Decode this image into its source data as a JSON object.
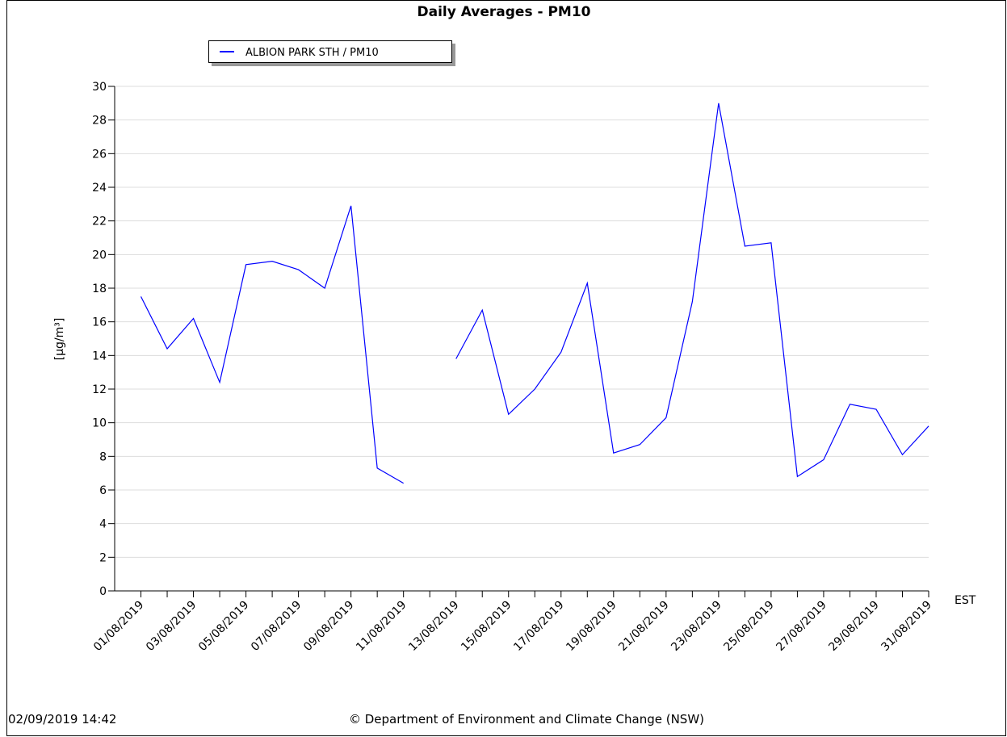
{
  "chart_data": {
    "type": "line",
    "title": "Daily Averages - PM10",
    "y_label": "[µg/m³]",
    "x_unit_label": "EST",
    "timestamp": "02/09/2019 14:42",
    "credit": "© Department of Environment and Climate Change (NSW)",
    "categories": [
      "01/08/2019",
      null,
      "03/08/2019",
      null,
      "05/08/2019",
      null,
      "07/08/2019",
      null,
      "09/08/2019",
      null,
      "11/08/2019",
      null,
      "13/08/2019",
      null,
      "15/08/2019",
      null,
      "17/08/2019",
      null,
      "19/08/2019",
      null,
      "21/08/2019",
      null,
      "23/08/2019",
      null,
      "25/08/2019",
      null,
      "27/08/2019",
      null,
      "29/08/2019",
      null,
      "31/08/2019"
    ],
    "series": [
      {
        "name": "ALBION PARK STH / PM10",
        "color": "#0000ff",
        "values": [
          17.5,
          14.4,
          16.2,
          12.4,
          19.4,
          19.6,
          19.1,
          18.0,
          22.9,
          7.3,
          6.4,
          null,
          13.8,
          16.7,
          10.5,
          12.0,
          14.2,
          18.3,
          8.2,
          8.7,
          10.3,
          17.2,
          29.0,
          20.5,
          20.7,
          6.8,
          7.8,
          11.1,
          10.8,
          8.1,
          9.8
        ]
      }
    ],
    "ylim": [
      0,
      30
    ],
    "yticks": [
      0,
      2,
      4,
      6,
      8,
      10,
      12,
      14,
      16,
      18,
      20,
      22,
      24,
      26,
      28,
      30
    ],
    "grid": true,
    "legend": "top-left"
  }
}
